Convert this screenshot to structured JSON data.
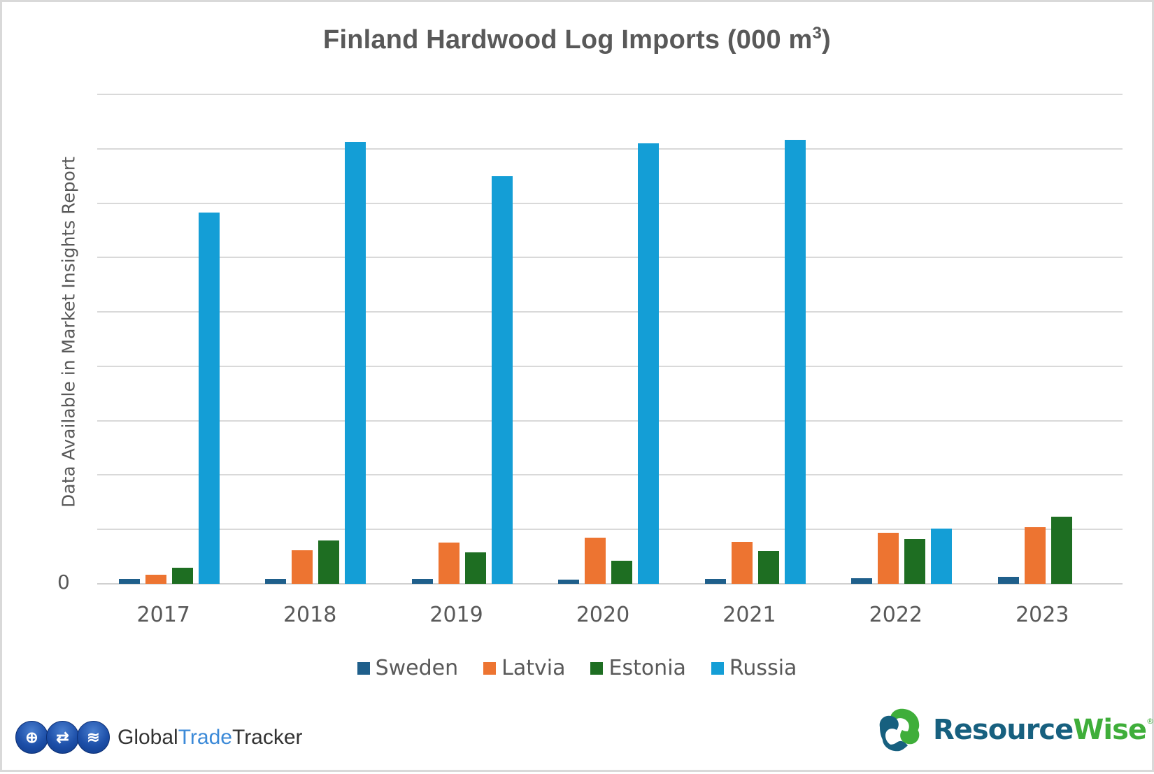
{
  "title": {
    "main": "Finland Hardwood Log Imports (000 m",
    "sup": "3",
    "close": ")"
  },
  "y_axis": {
    "label": "Data Available in Market Insights Report",
    "zero_label": "0"
  },
  "legend": [
    {
      "label": "Sweden",
      "color": "#1f5f8b"
    },
    {
      "label": "Latvia",
      "color": "#ed7431"
    },
    {
      "label": "Estonia",
      "color": "#1e6e22"
    },
    {
      "label": "Russia",
      "color": "#149ed6"
    }
  ],
  "logos": {
    "gtt": {
      "part1": "Global",
      "part2": "Trade",
      "part3": "Tracker",
      "icons": [
        "globe-icon",
        "exchange-icon",
        "chart-icon"
      ]
    },
    "resourcewise": {
      "part1": "Resource",
      "part2": "Wise",
      "reg": "®"
    }
  },
  "chart_data": {
    "type": "bar",
    "title": "Finland Hardwood Log Imports (000 m³)",
    "xlabel": "",
    "ylabel": "Data Available in Market Insights Report",
    "y_units_note": "Y values are in gridline units (no numeric tick labels shown except 0); 9 gridline intervals visible",
    "ylim": [
      0,
      9
    ],
    "grid": true,
    "legend_position": "bottom",
    "categories": [
      "2017",
      "2018",
      "2019",
      "2020",
      "2021",
      "2022",
      "2023"
    ],
    "series": [
      {
        "name": "Sweden",
        "color": "#1f5f8b",
        "values": [
          0.09,
          0.09,
          0.09,
          0.08,
          0.09,
          0.1,
          0.13
        ]
      },
      {
        "name": "Latvia",
        "color": "#ed7431",
        "values": [
          0.17,
          0.62,
          0.76,
          0.85,
          0.77,
          0.94,
          1.04
        ]
      },
      {
        "name": "Estonia",
        "color": "#1e6e22",
        "values": [
          0.3,
          0.8,
          0.58,
          0.42,
          0.61,
          0.82,
          1.24
        ]
      },
      {
        "name": "Russia",
        "color": "#149ed6",
        "values": [
          6.83,
          8.13,
          7.5,
          8.1,
          8.16,
          1.02,
          0
        ]
      }
    ]
  }
}
